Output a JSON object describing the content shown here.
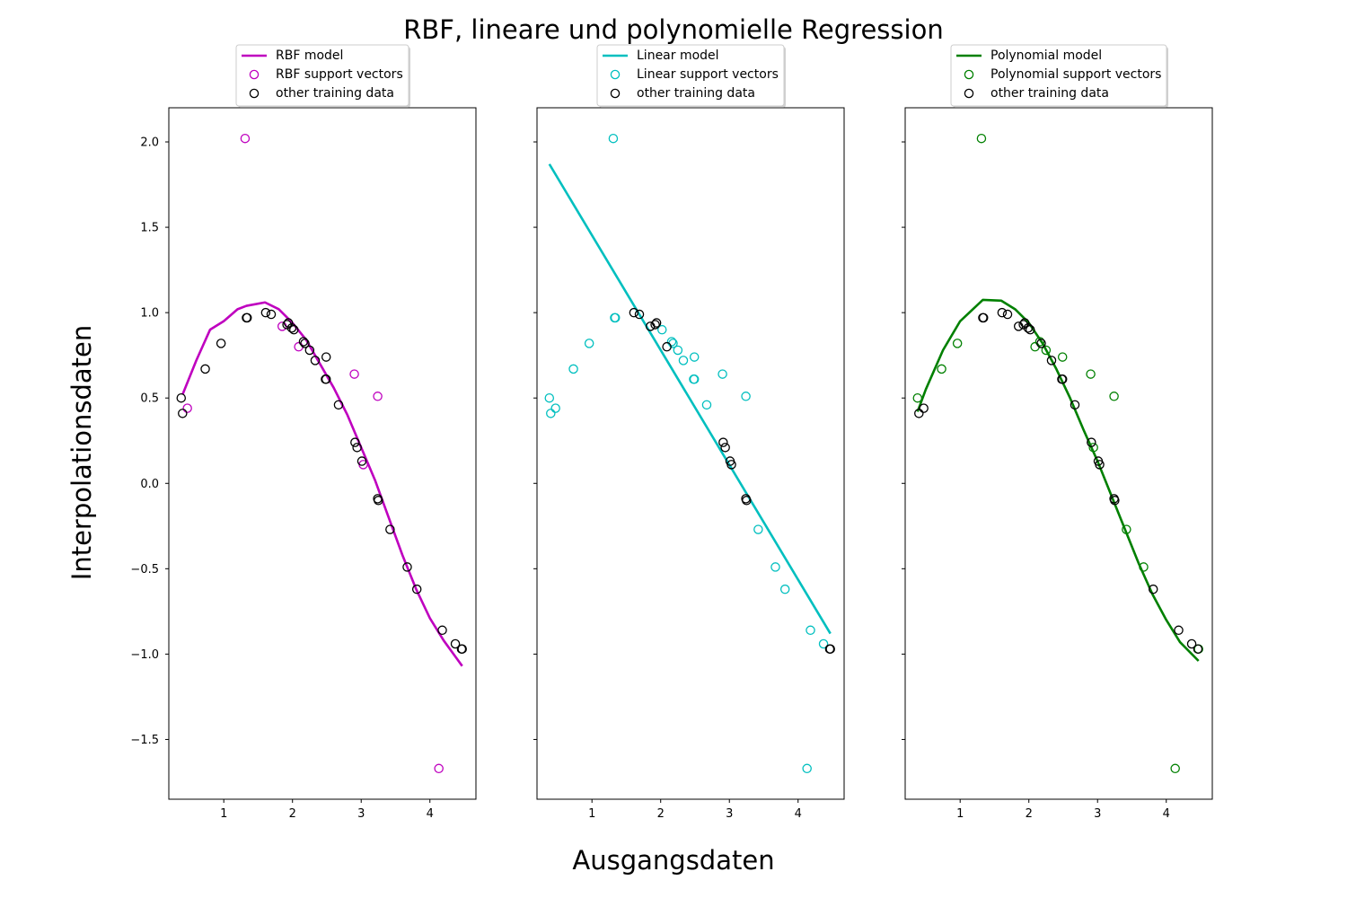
{
  "figure": {
    "title": "RBF, lineare und polynomielle Regression",
    "xlabel": "Ausgangsdaten",
    "ylabel": "Interpolationsdaten"
  },
  "chart_data": {
    "type": "scatter",
    "xlim": [
      0.2,
      4.67
    ],
    "ylim": [
      -1.85,
      2.2
    ],
    "xticks": [
      1,
      2,
      3,
      4
    ],
    "yticks": [
      -1.5,
      -1.0,
      -0.5,
      0.0,
      0.5,
      1.0,
      1.5,
      2.0
    ],
    "ytick_labels": [
      "−1.5",
      "−1.0",
      "−0.5",
      "0.0",
      "0.5",
      "1.0",
      "1.5",
      "2.0"
    ],
    "xtick_labels": [
      "1",
      "2",
      "3",
      "4"
    ],
    "grid": false,
    "legend_placement": "above each panel, centered",
    "shared_y": true,
    "panels": [
      {
        "color": "#bf00bf",
        "legend": [
          "RBF model",
          "RBF support vectors",
          "other training data"
        ],
        "model_curve": [
          [
            0.4,
            0.52
          ],
          [
            0.6,
            0.72
          ],
          [
            0.8,
            0.9
          ],
          [
            1.0,
            0.95
          ],
          [
            1.2,
            1.02
          ],
          [
            1.33,
            1.04
          ],
          [
            1.6,
            1.06
          ],
          [
            1.8,
            1.02
          ],
          [
            2.0,
            0.94
          ],
          [
            2.2,
            0.84
          ],
          [
            2.4,
            0.7
          ],
          [
            2.6,
            0.56
          ],
          [
            2.8,
            0.4
          ],
          [
            3.0,
            0.21
          ],
          [
            3.2,
            0.02
          ],
          [
            3.4,
            -0.2
          ],
          [
            3.6,
            -0.42
          ],
          [
            3.8,
            -0.62
          ],
          [
            4.0,
            -0.79
          ],
          [
            4.2,
            -0.92
          ],
          [
            4.47,
            -1.07
          ]
        ],
        "support_vectors": [
          [
            0.47,
            0.44
          ],
          [
            1.31,
            2.02
          ],
          [
            1.85,
            0.92
          ],
          [
            2.09,
            0.8
          ],
          [
            2.9,
            0.64
          ],
          [
            3.03,
            0.11
          ],
          [
            3.24,
            0.51
          ],
          [
            4.13,
            -1.67
          ]
        ],
        "other_data": [
          [
            0.38,
            0.5
          ],
          [
            0.4,
            0.41
          ],
          [
            0.73,
            0.67
          ],
          [
            0.96,
            0.82
          ],
          [
            1.33,
            0.97
          ],
          [
            1.34,
            0.97
          ],
          [
            1.61,
            1.0
          ],
          [
            1.69,
            0.99
          ],
          [
            1.92,
            0.93
          ],
          [
            1.94,
            0.94
          ],
          [
            1.99,
            0.91
          ],
          [
            2.02,
            0.9
          ],
          [
            2.16,
            0.83
          ],
          [
            2.18,
            0.82
          ],
          [
            2.25,
            0.78
          ],
          [
            2.33,
            0.72
          ],
          [
            2.48,
            0.61
          ],
          [
            2.49,
            0.61
          ],
          [
            2.49,
            0.74
          ],
          [
            2.67,
            0.46
          ],
          [
            2.91,
            0.24
          ],
          [
            2.94,
            0.21
          ],
          [
            3.01,
            0.13
          ],
          [
            3.24,
            -0.09
          ],
          [
            3.25,
            -0.1
          ],
          [
            3.42,
            -0.27
          ],
          [
            3.67,
            -0.49
          ],
          [
            3.81,
            -0.62
          ],
          [
            4.18,
            -0.86
          ],
          [
            4.37,
            -0.94
          ],
          [
            4.46,
            -0.97
          ],
          [
            4.47,
            -0.97
          ]
        ]
      },
      {
        "color": "#00bfbf",
        "legend": [
          "Linear model",
          "Linear support vectors",
          "other training data"
        ],
        "model_curve": [
          [
            0.38,
            1.87
          ],
          [
            4.47,
            -0.88
          ]
        ],
        "support_vectors": [
          [
            0.38,
            0.5
          ],
          [
            0.4,
            0.41
          ],
          [
            0.47,
            0.44
          ],
          [
            0.73,
            0.67
          ],
          [
            0.96,
            0.82
          ],
          [
            1.31,
            2.02
          ],
          [
            1.33,
            0.97
          ],
          [
            1.34,
            0.97
          ],
          [
            2.02,
            0.9
          ],
          [
            2.16,
            0.83
          ],
          [
            2.18,
            0.82
          ],
          [
            2.25,
            0.78
          ],
          [
            2.33,
            0.72
          ],
          [
            2.48,
            0.61
          ],
          [
            2.49,
            0.61
          ],
          [
            2.49,
            0.74
          ],
          [
            2.67,
            0.46
          ],
          [
            2.9,
            0.64
          ],
          [
            3.24,
            0.51
          ],
          [
            3.42,
            -0.27
          ],
          [
            3.67,
            -0.49
          ],
          [
            3.81,
            -0.62
          ],
          [
            4.13,
            -1.67
          ],
          [
            4.18,
            -0.86
          ],
          [
            4.37,
            -0.94
          ]
        ],
        "other_data": [
          [
            1.61,
            1.0
          ],
          [
            1.69,
            0.99
          ],
          [
            1.85,
            0.92
          ],
          [
            1.92,
            0.93
          ],
          [
            1.94,
            0.94
          ],
          [
            2.09,
            0.8
          ],
          [
            2.91,
            0.24
          ],
          [
            2.94,
            0.21
          ],
          [
            3.01,
            0.13
          ],
          [
            3.03,
            0.11
          ],
          [
            3.24,
            -0.09
          ],
          [
            3.25,
            -0.1
          ],
          [
            4.46,
            -0.97
          ],
          [
            4.47,
            -0.97
          ]
        ]
      },
      {
        "color": "#008000",
        "legend": [
          "Polynomial model",
          "Polynomial support vectors",
          "other training data"
        ],
        "model_curve": [
          [
            0.38,
            0.42
          ],
          [
            0.5,
            0.55
          ],
          [
            0.75,
            0.78
          ],
          [
            1.0,
            0.95
          ],
          [
            1.33,
            1.075
          ],
          [
            1.6,
            1.07
          ],
          [
            1.8,
            1.02
          ],
          [
            2.0,
            0.94
          ],
          [
            2.2,
            0.82
          ],
          [
            2.4,
            0.67
          ],
          [
            2.6,
            0.5
          ],
          [
            2.8,
            0.31
          ],
          [
            3.0,
            0.13
          ],
          [
            3.2,
            -0.07
          ],
          [
            3.4,
            -0.27
          ],
          [
            3.6,
            -0.47
          ],
          [
            3.8,
            -0.65
          ],
          [
            4.0,
            -0.8
          ],
          [
            4.2,
            -0.93
          ],
          [
            4.47,
            -1.04
          ]
        ],
        "support_vectors": [
          [
            0.38,
            0.5
          ],
          [
            0.73,
            0.67
          ],
          [
            0.96,
            0.82
          ],
          [
            1.31,
            2.02
          ],
          [
            2.09,
            0.8
          ],
          [
            2.16,
            0.83
          ],
          [
            2.25,
            0.78
          ],
          [
            2.49,
            0.74
          ],
          [
            2.9,
            0.64
          ],
          [
            2.94,
            0.21
          ],
          [
            3.24,
            0.51
          ],
          [
            3.42,
            -0.27
          ],
          [
            3.67,
            -0.49
          ],
          [
            4.13,
            -1.67
          ],
          [
            4.47,
            -0.97
          ]
        ],
        "other_data": [
          [
            0.4,
            0.41
          ],
          [
            0.47,
            0.44
          ],
          [
            1.33,
            0.97
          ],
          [
            1.34,
            0.97
          ],
          [
            1.61,
            1.0
          ],
          [
            1.69,
            0.99
          ],
          [
            1.85,
            0.92
          ],
          [
            1.92,
            0.93
          ],
          [
            1.94,
            0.94
          ],
          [
            1.99,
            0.91
          ],
          [
            2.02,
            0.9
          ],
          [
            2.18,
            0.82
          ],
          [
            2.33,
            0.72
          ],
          [
            2.48,
            0.61
          ],
          [
            2.49,
            0.61
          ],
          [
            2.67,
            0.46
          ],
          [
            2.91,
            0.24
          ],
          [
            3.01,
            0.13
          ],
          [
            3.03,
            0.11
          ],
          [
            3.24,
            -0.09
          ],
          [
            3.25,
            -0.1
          ],
          [
            3.81,
            -0.62
          ],
          [
            4.18,
            -0.86
          ],
          [
            4.37,
            -0.94
          ],
          [
            4.46,
            -0.97
          ]
        ]
      }
    ]
  }
}
